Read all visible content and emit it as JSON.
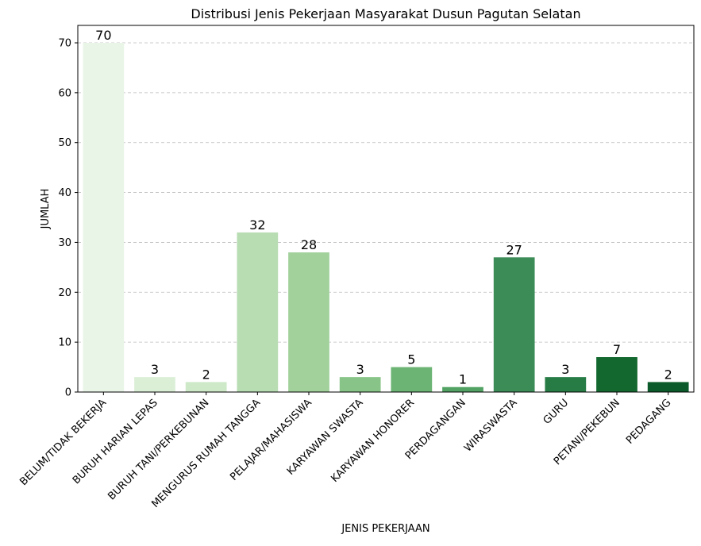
{
  "chart_data": {
    "type": "bar",
    "title": "Distribusi Jenis Pekerjaan Masyarakat Dusun Pagutan Selatan",
    "xlabel": "JENIS PEKERJAAN",
    "ylabel": "JUMLAH",
    "categories": [
      "BELUM/TIDAK BEKERJA",
      "BURUH HARIAN LEPAS",
      "BURUH TANI/PERKEBUNAN",
      "MENGURUS RUMAH TANGGA",
      "PELAJAR/MAHASISWA",
      "KARYAWAN SWASTA",
      "KARYAWAN HONORER",
      "PERDAGANGAN",
      "WIRASWASTA",
      "GURU",
      "PETANI/PEKEBUN",
      "PEDAGANG"
    ],
    "values": [
      70,
      3,
      2,
      32,
      28,
      3,
      5,
      1,
      27,
      3,
      7,
      2
    ],
    "colors": [
      "#e9f5e7",
      "#dbefd7",
      "#cde9c7",
      "#b8ddb3",
      "#a2d19c",
      "#88c487",
      "#6cb474",
      "#52a263",
      "#3c8c57",
      "#277c46",
      "#13682f",
      "#0a5a2b"
    ],
    "yticks": [
      0,
      10,
      20,
      30,
      40,
      50,
      60,
      70
    ],
    "ylim": [
      0,
      73.5
    ],
    "grid": "y-dashed",
    "legend": "none"
  }
}
